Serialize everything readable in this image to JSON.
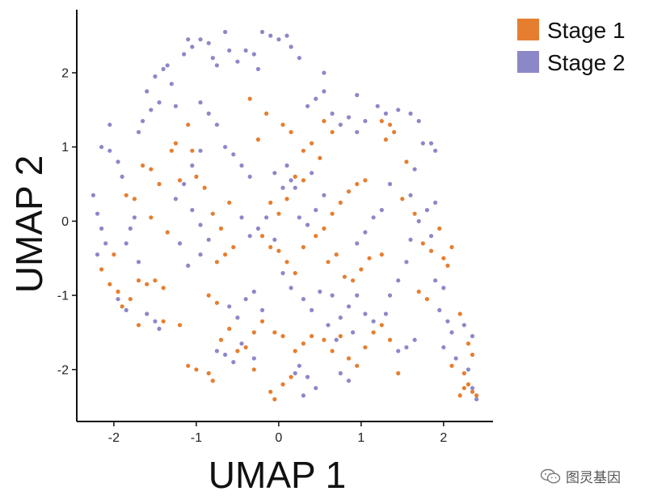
{
  "chart_data": {
    "type": "scatter",
    "xlabel": "UMAP 1",
    "ylabel": "UMAP 2",
    "xlim": [
      -2.45,
      2.6
    ],
    "ylim": [
      -2.7,
      2.85
    ],
    "xticks": [
      -2,
      -1,
      0,
      1,
      2
    ],
    "yticks": [
      -2,
      -1,
      0,
      1,
      2
    ],
    "grid": false,
    "legend": "top-right",
    "series": [
      {
        "name": "Stage 1",
        "color": "#E67E30",
        "points": [
          [
            -2.15,
            -0.65
          ],
          [
            -2.05,
            -0.85
          ],
          [
            -1.95,
            -0.95
          ],
          [
            -1.9,
            -1.15
          ],
          [
            -1.8,
            -1.05
          ],
          [
            -1.85,
            0.35
          ],
          [
            -1.75,
            0.3
          ],
          [
            -1.65,
            0.75
          ],
          [
            -1.55,
            0.7
          ],
          [
            -1.45,
            0.5
          ],
          [
            -1.7,
            -0.8
          ],
          [
            -1.6,
            -0.85
          ],
          [
            -1.5,
            -0.8
          ],
          [
            -1.4,
            -0.9
          ],
          [
            -1.7,
            -1.4
          ],
          [
            -1.3,
            0.95
          ],
          [
            -1.25,
            1.05
          ],
          [
            -1.1,
            1.3
          ],
          [
            -1.05,
            0.95
          ],
          [
            -1.2,
            0.55
          ],
          [
            -1.0,
            0.6
          ],
          [
            -0.9,
            0.45
          ],
          [
            -0.8,
            0.1
          ],
          [
            -0.7,
            -0.1
          ],
          [
            -0.6,
            0.25
          ],
          [
            -0.75,
            -0.55
          ],
          [
            -0.65,
            -0.45
          ],
          [
            -0.55,
            -0.35
          ],
          [
            -0.85,
            -1.0
          ],
          [
            -0.75,
            -1.1
          ],
          [
            -1.1,
            -1.95
          ],
          [
            -1.0,
            -2.0
          ],
          [
            -0.85,
            -2.05
          ],
          [
            -0.8,
            -2.15
          ],
          [
            -0.5,
            -1.75
          ],
          [
            -0.4,
            -1.7
          ],
          [
            -0.3,
            -1.5
          ],
          [
            -0.2,
            -1.35
          ],
          [
            -0.6,
            -1.45
          ],
          [
            -0.7,
            -1.6
          ],
          [
            -0.1,
            0.25
          ],
          [
            0.0,
            0.1
          ],
          [
            0.1,
            0.3
          ],
          [
            0.2,
            0.6
          ],
          [
            0.3,
            0.55
          ],
          [
            -0.2,
            -0.2
          ],
          [
            -0.1,
            -0.35
          ],
          [
            0.0,
            -0.4
          ],
          [
            0.1,
            -0.55
          ],
          [
            0.2,
            -0.7
          ],
          [
            0.3,
            -0.35
          ],
          [
            0.45,
            -0.2
          ],
          [
            0.55,
            -0.1
          ],
          [
            0.65,
            0.1
          ],
          [
            0.75,
            0.25
          ],
          [
            0.85,
            0.4
          ],
          [
            0.95,
            0.5
          ],
          [
            1.05,
            0.55
          ],
          [
            0.6,
            -0.55
          ],
          [
            0.7,
            -0.45
          ],
          [
            0.8,
            -0.75
          ],
          [
            0.9,
            -0.8
          ],
          [
            1.0,
            -0.65
          ],
          [
            1.1,
            -0.5
          ],
          [
            1.25,
            -0.45
          ],
          [
            -0.05,
            -1.5
          ],
          [
            0.05,
            -1.55
          ],
          [
            0.2,
            -1.75
          ],
          [
            0.3,
            -1.65
          ],
          [
            0.4,
            -1.55
          ],
          [
            0.55,
            -1.6
          ],
          [
            0.65,
            -1.75
          ],
          [
            0.75,
            -1.55
          ],
          [
            0.85,
            -1.85
          ],
          [
            0.95,
            -1.95
          ],
          [
            1.05,
            -1.7
          ],
          [
            1.15,
            -1.5
          ],
          [
            1.25,
            -1.4
          ],
          [
            1.35,
            -1.6
          ],
          [
            1.45,
            -2.05
          ],
          [
            -0.1,
            -2.3
          ],
          [
            -0.05,
            -2.4
          ],
          [
            0.05,
            -2.2
          ],
          [
            0.15,
            -2.1
          ],
          [
            -0.3,
            -2.0
          ],
          [
            0.4,
            1.05
          ],
          [
            0.55,
            1.35
          ],
          [
            0.65,
            1.2
          ],
          [
            0.5,
            0.85
          ],
          [
            0.3,
            0.95
          ],
          [
            1.25,
            1.35
          ],
          [
            1.35,
            1.3
          ],
          [
            1.4,
            1.2
          ],
          [
            1.3,
            1.1
          ],
          [
            1.55,
            0.8
          ],
          [
            1.5,
            0.3
          ],
          [
            1.65,
            0.1
          ],
          [
            1.75,
            -0.3
          ],
          [
            1.85,
            -0.4
          ],
          [
            1.95,
            -0.1
          ],
          [
            2.0,
            -0.5
          ],
          [
            2.05,
            -0.6
          ],
          [
            2.1,
            -0.35
          ],
          [
            1.7,
            -0.95
          ],
          [
            1.8,
            -1.05
          ],
          [
            2.2,
            -1.25
          ],
          [
            2.25,
            -2.05
          ],
          [
            2.3,
            -2.2
          ],
          [
            2.35,
            -2.3
          ],
          [
            2.2,
            -2.35
          ],
          [
            2.3,
            -1.65
          ],
          [
            2.35,
            -1.8
          ],
          [
            2.1,
            -1.95
          ],
          [
            2.25,
            -2.25
          ],
          [
            2.4,
            -2.35
          ],
          [
            -0.35,
            1.65
          ],
          [
            -0.15,
            1.45
          ],
          [
            0.05,
            1.3
          ],
          [
            0.15,
            1.2
          ],
          [
            -0.25,
            1.1
          ],
          [
            -1.4,
            -1.35
          ],
          [
            -1.2,
            -1.4
          ],
          [
            -2.0,
            -0.45
          ],
          [
            -1.55,
            0.05
          ],
          [
            -1.35,
            -0.15
          ]
        ]
      },
      {
        "name": "Stage 2",
        "color": "#8C88C8",
        "points": [
          [
            -2.25,
            0.35
          ],
          [
            -2.2,
            0.1
          ],
          [
            -2.15,
            -0.1
          ],
          [
            -2.1,
            -0.3
          ],
          [
            -2.2,
            -0.45
          ],
          [
            -2.15,
            1.0
          ],
          [
            -2.05,
            0.95
          ],
          [
            -2.05,
            1.3
          ],
          [
            -1.95,
            0.8
          ],
          [
            -1.9,
            0.6
          ],
          [
            -1.85,
            -0.3
          ],
          [
            -1.8,
            -0.1
          ],
          [
            -1.75,
            0.05
          ],
          [
            -1.7,
            -0.55
          ],
          [
            -1.95,
            -1.05
          ],
          [
            -1.85,
            -1.2
          ],
          [
            -1.6,
            -1.25
          ],
          [
            -1.5,
            -1.35
          ],
          [
            -1.45,
            -1.45
          ],
          [
            -1.7,
            1.2
          ],
          [
            -1.65,
            1.35
          ],
          [
            -1.55,
            1.5
          ],
          [
            -1.45,
            1.6
          ],
          [
            -1.6,
            1.75
          ],
          [
            -1.5,
            1.95
          ],
          [
            -1.4,
            2.05
          ],
          [
            -1.35,
            2.1
          ],
          [
            -1.3,
            1.85
          ],
          [
            -1.25,
            1.55
          ],
          [
            -1.15,
            2.25
          ],
          [
            -1.1,
            2.45
          ],
          [
            -1.05,
            2.35
          ],
          [
            -0.95,
            2.45
          ],
          [
            -0.85,
            2.4
          ],
          [
            -0.8,
            2.2
          ],
          [
            -0.75,
            2.1
          ],
          [
            -0.65,
            2.55
          ],
          [
            -0.6,
            2.3
          ],
          [
            -0.5,
            2.15
          ],
          [
            -0.4,
            2.3
          ],
          [
            -0.3,
            2.25
          ],
          [
            -0.25,
            2.05
          ],
          [
            -0.2,
            2.55
          ],
          [
            -0.1,
            2.5
          ],
          [
            0.0,
            2.45
          ],
          [
            0.1,
            2.5
          ],
          [
            0.15,
            2.35
          ],
          [
            0.25,
            2.2
          ],
          [
            -0.95,
            1.6
          ],
          [
            -0.85,
            1.45
          ],
          [
            -0.75,
            1.3
          ],
          [
            -0.65,
            1.0
          ],
          [
            -0.55,
            0.9
          ],
          [
            -0.45,
            0.75
          ],
          [
            -0.35,
            0.6
          ],
          [
            -0.95,
            0.95
          ],
          [
            -1.05,
            0.75
          ],
          [
            -1.15,
            0.5
          ],
          [
            -1.25,
            0.3
          ],
          [
            -1.05,
            0.15
          ],
          [
            -0.95,
            -0.05
          ],
          [
            -0.85,
            -0.25
          ],
          [
            -0.95,
            -0.45
          ],
          [
            -1.1,
            -0.6
          ],
          [
            -1.2,
            -0.3
          ],
          [
            -0.45,
            0.05
          ],
          [
            -0.35,
            -0.2
          ],
          [
            -0.25,
            -0.1
          ],
          [
            -0.15,
            0.05
          ],
          [
            -0.05,
            -0.25
          ],
          [
            0.05,
            0.45
          ],
          [
            0.15,
            0.55
          ],
          [
            0.2,
            0.45
          ],
          [
            0.1,
            0.75
          ],
          [
            -0.05,
            0.65
          ],
          [
            0.25,
            0.05
          ],
          [
            0.35,
            -0.05
          ],
          [
            0.45,
            0.15
          ],
          [
            0.55,
            0.35
          ],
          [
            0.4,
            0.65
          ],
          [
            0.05,
            -0.7
          ],
          [
            0.15,
            -0.9
          ],
          [
            0.3,
            -1.05
          ],
          [
            0.4,
            -1.2
          ],
          [
            0.5,
            -0.95
          ],
          [
            0.65,
            -1.0
          ],
          [
            0.75,
            -1.3
          ],
          [
            0.85,
            -1.15
          ],
          [
            0.95,
            -1.0
          ],
          [
            1.05,
            -1.25
          ],
          [
            1.15,
            -1.35
          ],
          [
            1.3,
            -1.25
          ],
          [
            1.35,
            -1.0
          ],
          [
            1.45,
            -0.8
          ],
          [
            1.55,
            -0.55
          ],
          [
            1.6,
            -0.25
          ],
          [
            1.7,
            0.0
          ],
          [
            1.8,
            0.15
          ],
          [
            1.9,
            0.25
          ],
          [
            1.85,
            -0.2
          ],
          [
            1.2,
            1.55
          ],
          [
            1.3,
            1.45
          ],
          [
            1.45,
            1.5
          ],
          [
            1.6,
            1.45
          ],
          [
            1.7,
            1.35
          ],
          [
            1.75,
            1.05
          ],
          [
            1.85,
            1.05
          ],
          [
            1.9,
            0.95
          ],
          [
            1.65,
            0.7
          ],
          [
            1.6,
            0.35
          ],
          [
            1.35,
            0.5
          ],
          [
            1.25,
            0.15
          ],
          [
            1.15,
            0.05
          ],
          [
            1.05,
            -0.15
          ],
          [
            0.95,
            -0.3
          ],
          [
            1.9,
            -0.8
          ],
          [
            2.0,
            -0.9
          ],
          [
            1.95,
            -1.2
          ],
          [
            2.05,
            -1.35
          ],
          [
            2.1,
            -1.5
          ],
          [
            2.0,
            -1.7
          ],
          [
            2.15,
            -1.85
          ],
          [
            2.3,
            -2.0
          ],
          [
            2.35,
            -2.25
          ],
          [
            2.4,
            -2.4
          ],
          [
            2.35,
            -1.55
          ],
          [
            2.25,
            -1.4
          ],
          [
            1.65,
            -1.6
          ],
          [
            1.55,
            -1.7
          ],
          [
            1.45,
            -1.75
          ],
          [
            -0.6,
            -1.15
          ],
          [
            -0.5,
            -1.3
          ],
          [
            -0.4,
            -1.05
          ],
          [
            -0.3,
            -0.95
          ],
          [
            -0.2,
            -1.2
          ],
          [
            -0.75,
            -1.75
          ],
          [
            -0.65,
            -1.8
          ],
          [
            -0.55,
            -1.9
          ],
          [
            -0.45,
            -1.65
          ],
          [
            -0.3,
            -1.85
          ],
          [
            0.25,
            -1.95
          ],
          [
            0.35,
            -2.1
          ],
          [
            0.45,
            -2.25
          ],
          [
            0.3,
            -2.35
          ],
          [
            0.2,
            -2.05
          ],
          [
            0.75,
            -2.05
          ],
          [
            0.85,
            -2.15
          ],
          [
            0.6,
            -1.4
          ],
          [
            0.7,
            -1.6
          ],
          [
            0.9,
            -1.5
          ],
          [
            0.35,
            1.55
          ],
          [
            0.45,
            1.65
          ],
          [
            0.55,
            1.75
          ],
          [
            0.65,
            1.45
          ],
          [
            0.75,
            1.3
          ],
          [
            0.85,
            1.4
          ],
          [
            0.95,
            1.2
          ],
          [
            1.05,
            1.35
          ],
          [
            0.95,
            1.7
          ],
          [
            0.55,
            2.0
          ]
        ]
      }
    ]
  },
  "watermark": {
    "text": "图灵基因",
    "icon": "wechat-icon"
  }
}
